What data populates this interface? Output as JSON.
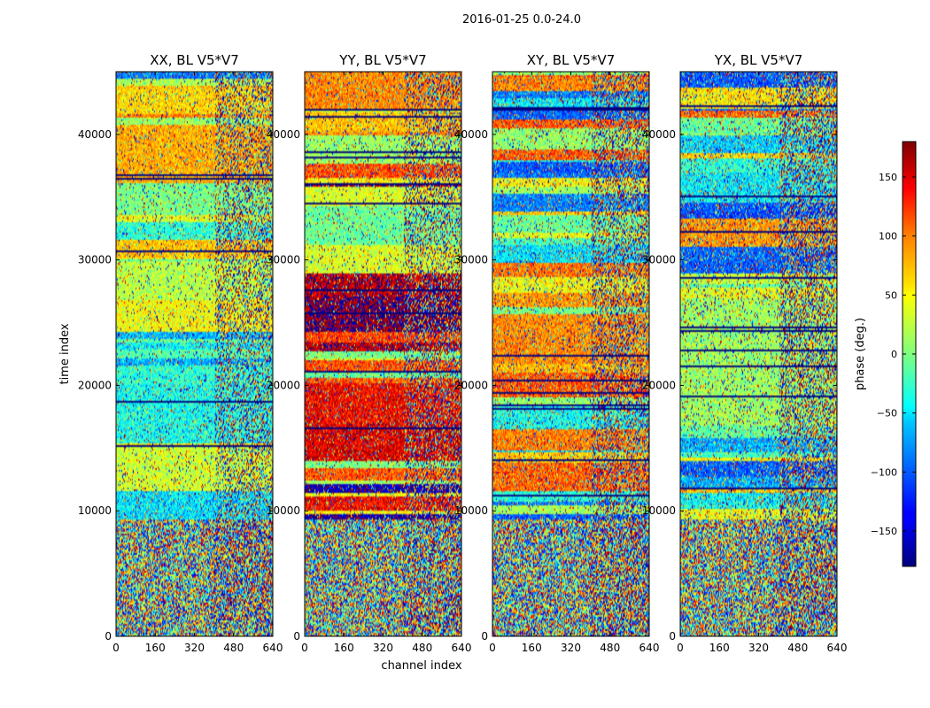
{
  "figure_title": "2016-01-25 0.0-24.0",
  "colors": {
    "jet": [
      "#00007f",
      "#0000ff",
      "#007fff",
      "#00ffff",
      "#7fff7f",
      "#ffff00",
      "#ff7f00",
      "#ff0000",
      "#7f0000"
    ],
    "frame": "#000000",
    "background": "#ffffff"
  },
  "chart_data": {
    "type": "heatmap",
    "xlabel": "channel index",
    "ylabel": "time index",
    "x_range": [
      0,
      640
    ],
    "y_range": [
      0,
      45000
    ],
    "x_ticks": [
      0,
      160,
      320,
      480,
      640
    ],
    "y_ticks": [
      0,
      10000,
      20000,
      30000,
      40000
    ],
    "x_tick_labels": [
      "0",
      "160",
      "320",
      "480",
      "640"
    ],
    "y_tick_labels": [
      "0",
      "10000",
      "20000",
      "30000",
      "40000"
    ],
    "panels": [
      {
        "title": "XX, BL V5*V7",
        "base_phase": 20,
        "noise": 0.5
      },
      {
        "title": "YY, BL V5*V7",
        "base_phase": 95,
        "noise": 0.45
      },
      {
        "title": "XY, BL V5*V7",
        "base_phase": 5,
        "noise": 0.6
      },
      {
        "title": "YX, BL V5*V7",
        "base_phase": 0,
        "noise": 0.75
      }
    ],
    "colorbar": {
      "label": "phase (deg.)",
      "range": [
        -180,
        180
      ],
      "ticks": [
        -150,
        -100,
        -50,
        0,
        50,
        100,
        150
      ],
      "tick_labels": [
        "−150",
        "−100",
        "−50",
        "0",
        "50",
        "100",
        "150"
      ],
      "colormap": "jet"
    }
  }
}
